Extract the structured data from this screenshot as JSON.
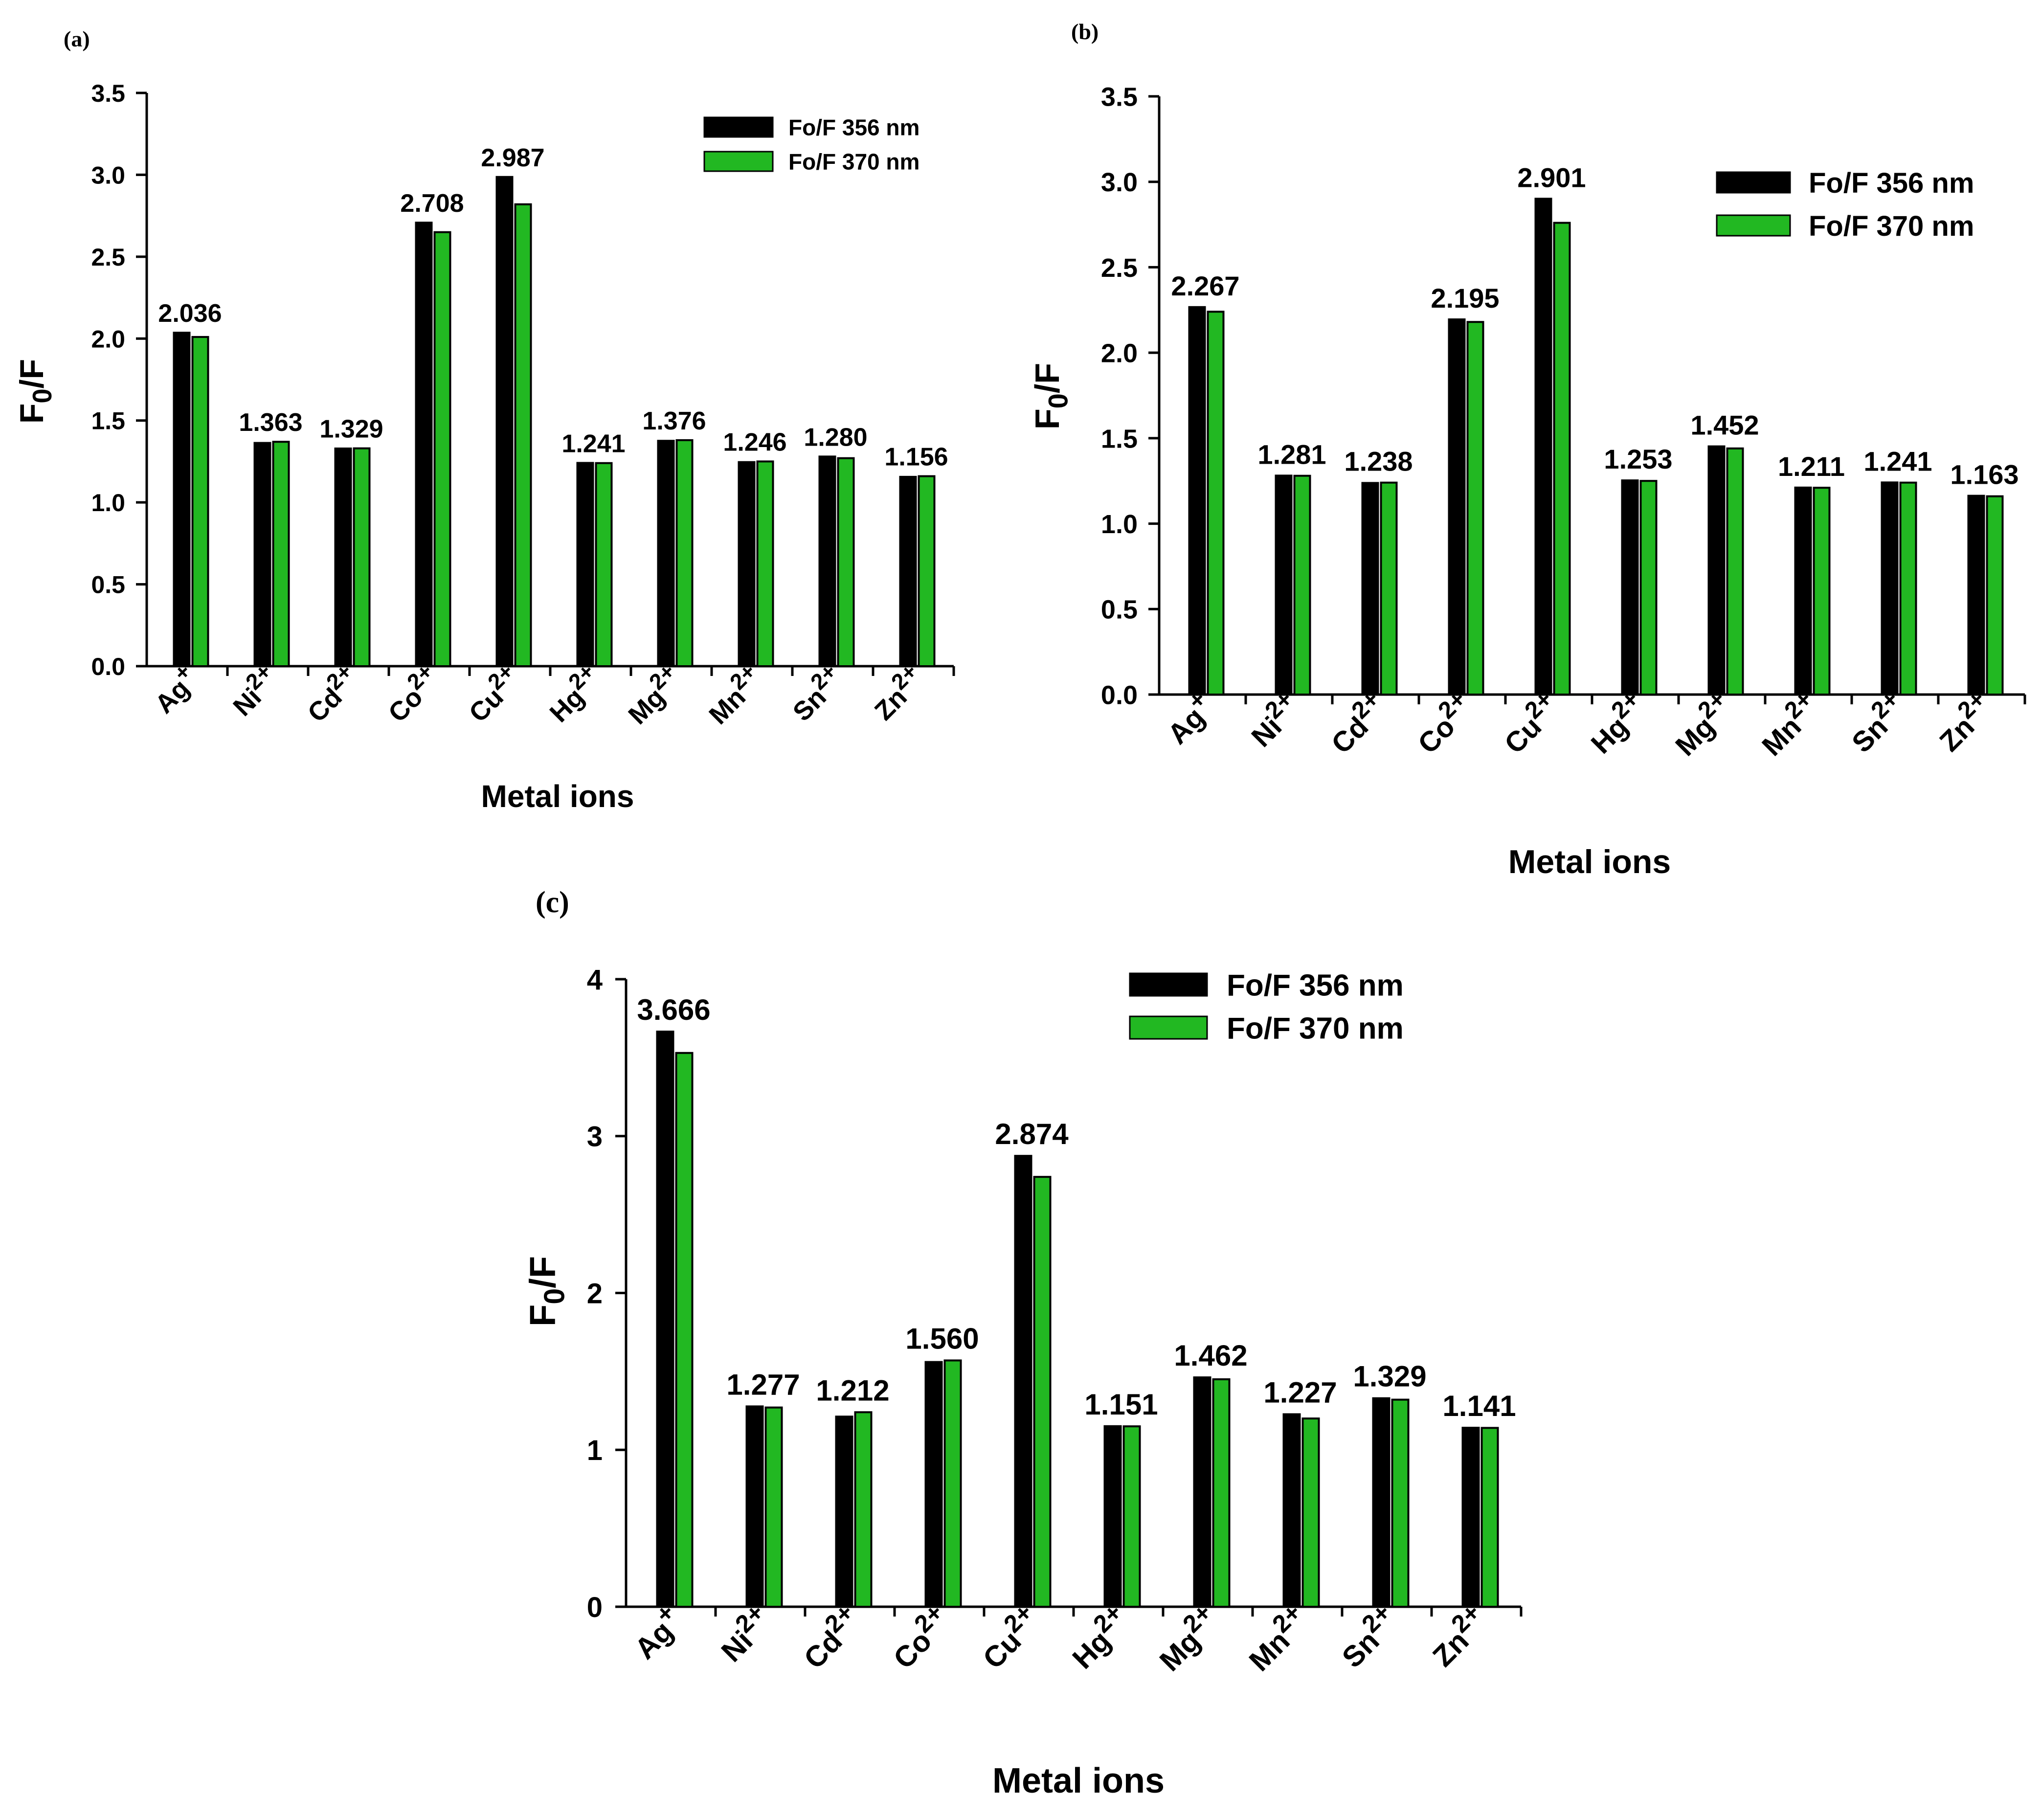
{
  "colors": {
    "series_356": "#000000",
    "series_370": "#22b822",
    "axis": "#000000"
  },
  "chart_data": [
    {
      "type": "bar",
      "panel_label": "(a)",
      "categories": [
        "Ag",
        "Ni",
        "Cd",
        "Co",
        "Cu",
        "Hg",
        "Mg",
        "Mn",
        "Sn",
        "Zn"
      ],
      "charges": [
        "+",
        "2+",
        "2+",
        "2+",
        "2+",
        "2+",
        "2+",
        "2+",
        "2+",
        "2+"
      ],
      "series": [
        {
          "name": "Fo/F 356 nm",
          "values": [
            2.036,
            1.363,
            1.329,
            2.708,
            2.987,
            1.241,
            1.376,
            1.246,
            1.28,
            1.156
          ]
        },
        {
          "name": "Fo/F 370 nm",
          "values": [
            2.01,
            1.37,
            1.33,
            2.65,
            2.82,
            1.24,
            1.38,
            1.25,
            1.27,
            1.16
          ]
        }
      ],
      "data_labels": [
        "2.036",
        "1.363",
        "1.329",
        "2.708",
        "2.987",
        "1.241",
        "1.376",
        "1.246",
        "1.280",
        "1.156"
      ],
      "xlabel": "Metal ions",
      "ylabel_main": "F",
      "ylabel_sub": "0",
      "ylabel_rest": "/F",
      "ylim": [
        0,
        3.5
      ],
      "yticks": [
        "0.0",
        "0.5",
        "1.0",
        "1.5",
        "2.0",
        "2.5",
        "3.0",
        "3.5"
      ],
      "legend_position": "top-right"
    },
    {
      "type": "bar",
      "panel_label": "(b)",
      "categories": [
        "Ag",
        "Ni",
        "Cd",
        "Co",
        "Cu",
        "Hg",
        "Mg",
        "Mn",
        "Sn",
        "Zn"
      ],
      "charges": [
        "+",
        "2+",
        "2+",
        "2+",
        "2+",
        "2+",
        "2+",
        "2+",
        "2+",
        "2+"
      ],
      "series": [
        {
          "name": "Fo/F 356 nm",
          "values": [
            2.267,
            1.281,
            1.238,
            2.195,
            2.901,
            1.253,
            1.452,
            1.211,
            1.241,
            1.163
          ]
        },
        {
          "name": "Fo/F 370 nm",
          "values": [
            2.24,
            1.28,
            1.24,
            2.18,
            2.76,
            1.25,
            1.44,
            1.21,
            1.24,
            1.16
          ]
        }
      ],
      "data_labels": [
        "2.267",
        "1.281",
        "1.238",
        "2.195",
        "2.901",
        "1.253",
        "1.452",
        "1.211",
        "1.241",
        "1.163"
      ],
      "xlabel": "Metal ions",
      "ylabel_main": "F",
      "ylabel_sub": "0",
      "ylabel_rest": "/F",
      "ylim": [
        0,
        3.5
      ],
      "yticks": [
        "0.0",
        "0.5",
        "1.0",
        "1.5",
        "2.0",
        "2.5",
        "3.0",
        "3.5"
      ],
      "legend_position": "top-right"
    },
    {
      "type": "bar",
      "panel_label": "(c)",
      "categories": [
        "Ag",
        "Ni",
        "Cd",
        "Co",
        "Cu",
        "Hg",
        "Mg",
        "Mn",
        "Sn",
        "Zn"
      ],
      "charges": [
        "+",
        "2+",
        "2+",
        "2+",
        "2+",
        "2+",
        "2+",
        "2+",
        "2+",
        "2+"
      ],
      "series": [
        {
          "name": "Fo/F 356 nm",
          "values": [
            3.666,
            1.277,
            1.212,
            1.56,
            2.874,
            1.151,
            1.462,
            1.227,
            1.329,
            1.141
          ]
        },
        {
          "name": "Fo/F 370 nm",
          "values": [
            3.53,
            1.27,
            1.24,
            1.57,
            2.74,
            1.15,
            1.45,
            1.2,
            1.32,
            1.14
          ]
        }
      ],
      "data_labels": [
        "3.666",
        "1.277",
        "1.212",
        "1.560",
        "2.874",
        "1.151",
        "1.462",
        "1.227",
        "1.329",
        "1.141"
      ],
      "xlabel": "Metal ions",
      "ylabel_main": "F",
      "ylabel_sub": "0",
      "ylabel_rest": "/F",
      "ylim": [
        0,
        4
      ],
      "yticks": [
        "0",
        "1",
        "2",
        "3",
        "4"
      ],
      "legend_position": "top-right"
    }
  ]
}
